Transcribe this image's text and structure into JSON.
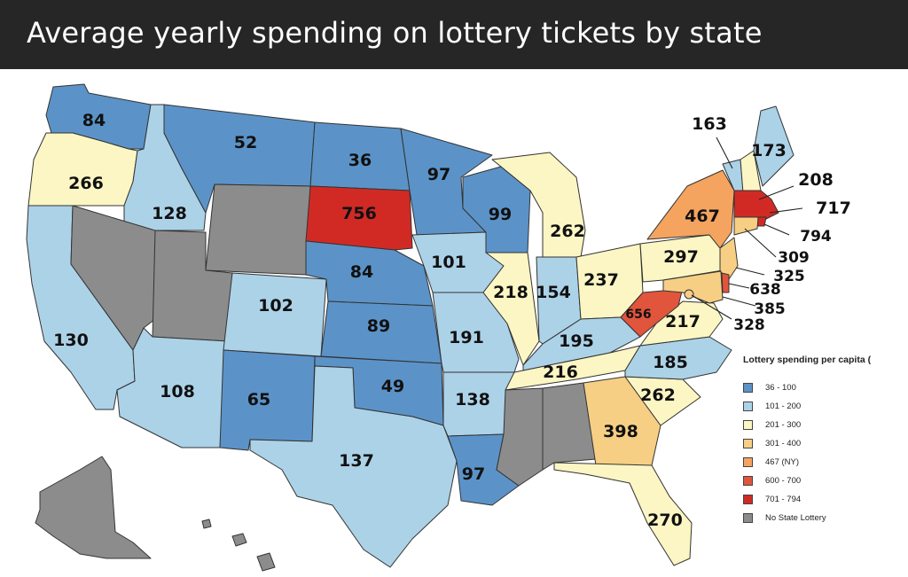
{
  "title": "Average yearly spending on lottery tickets by state",
  "legend": {
    "title": "Lottery spending per capita (",
    "items": [
      {
        "label": "36 - 100",
        "color": "#5b93c8"
      },
      {
        "label": "101 - 200",
        "color": "#acd2e8"
      },
      {
        "label": "201 - 300",
        "color": "#fbf6c3"
      },
      {
        "label": "301 - 400",
        "color": "#f6cf85"
      },
      {
        "label": "467 (NY)",
        "color": "#f4a45f"
      },
      {
        "label": "600 - 700",
        "color": "#e0553c"
      },
      {
        "label": "701 - 794",
        "color": "#d12a25"
      },
      {
        "label": "No State Lottery",
        "color": "#8c8c8c"
      }
    ]
  },
  "states": [
    {
      "name": "WA",
      "value": "84",
      "color": "#5b93c8"
    },
    {
      "name": "OR",
      "value": "266",
      "color": "#fbf6c3"
    },
    {
      "name": "CA",
      "value": "130",
      "color": "#acd2e8"
    },
    {
      "name": "ID",
      "value": "128",
      "color": "#acd2e8"
    },
    {
      "name": "NV",
      "value": "",
      "color": "#8c8c8c"
    },
    {
      "name": "MT",
      "value": "52",
      "color": "#5b93c8"
    },
    {
      "name": "WY",
      "value": "",
      "color": "#8c8c8c"
    },
    {
      "name": "UT",
      "value": "",
      "color": "#8c8c8c"
    },
    {
      "name": "AZ",
      "value": "108",
      "color": "#acd2e8"
    },
    {
      "name": "CO",
      "value": "102",
      "color": "#acd2e8"
    },
    {
      "name": "NM",
      "value": "65",
      "color": "#5b93c8"
    },
    {
      "name": "ND",
      "value": "36",
      "color": "#5b93c8"
    },
    {
      "name": "SD",
      "value": "756",
      "color": "#d12a25"
    },
    {
      "name": "NE",
      "value": "84",
      "color": "#5b93c8"
    },
    {
      "name": "KS",
      "value": "89",
      "color": "#5b93c8"
    },
    {
      "name": "OK",
      "value": "49",
      "color": "#5b93c8"
    },
    {
      "name": "TX",
      "value": "137",
      "color": "#acd2e8"
    },
    {
      "name": "MN",
      "value": "97",
      "color": "#5b93c8"
    },
    {
      "name": "IA",
      "value": "101",
      "color": "#acd2e8"
    },
    {
      "name": "MO",
      "value": "191",
      "color": "#acd2e8"
    },
    {
      "name": "AR",
      "value": "138",
      "color": "#acd2e8"
    },
    {
      "name": "LA",
      "value": "97",
      "color": "#5b93c8"
    },
    {
      "name": "WI",
      "value": "99",
      "color": "#5b93c8"
    },
    {
      "name": "IL",
      "value": "218",
      "color": "#fbf6c3"
    },
    {
      "name": "MI",
      "value": "262",
      "color": "#fbf6c3"
    },
    {
      "name": "IN",
      "value": "154",
      "color": "#acd2e8"
    },
    {
      "name": "OH",
      "value": "237",
      "color": "#fbf6c3"
    },
    {
      "name": "KY",
      "value": "195",
      "color": "#acd2e8"
    },
    {
      "name": "TN",
      "value": "216",
      "color": "#fbf6c3"
    },
    {
      "name": "MS",
      "value": "",
      "color": "#8c8c8c"
    },
    {
      "name": "AL",
      "value": "",
      "color": "#8c8c8c"
    },
    {
      "name": "GA",
      "value": "398",
      "color": "#f6cf85"
    },
    {
      "name": "FL",
      "value": "270",
      "color": "#fbf6c3"
    },
    {
      "name": "SC",
      "value": "262",
      "color": "#fbf6c3"
    },
    {
      "name": "NC",
      "value": "185",
      "color": "#acd2e8"
    },
    {
      "name": "VA",
      "value": "217",
      "color": "#fbf6c3"
    },
    {
      "name": "WV",
      "value": "656",
      "color": "#e0553c"
    },
    {
      "name": "PA",
      "value": "297",
      "color": "#fbf6c3"
    },
    {
      "name": "NY",
      "value": "467",
      "color": "#f4a45f"
    },
    {
      "name": "VT",
      "value": "163",
      "color": "#acd2e8"
    },
    {
      "name": "NH",
      "value": "208",
      "color": "#fbf6c3"
    },
    {
      "name": "ME",
      "value": "173",
      "color": "#acd2e8"
    },
    {
      "name": "MA",
      "value": "717",
      "color": "#d12a25"
    },
    {
      "name": "RI",
      "value": "794",
      "color": "#d12a25"
    },
    {
      "name": "CT",
      "value": "309",
      "color": "#f6cf85"
    },
    {
      "name": "NJ",
      "value": "325",
      "color": "#f6cf85"
    },
    {
      "name": "DE",
      "value": "638",
      "color": "#e0553c"
    },
    {
      "name": "MD",
      "value": "385",
      "color": "#f6cf85"
    },
    {
      "name": "DC",
      "value": "328",
      "color": "#f6cf85"
    },
    {
      "name": "AK",
      "value": "",
      "color": "#8c8c8c"
    },
    {
      "name": "HI",
      "value": "",
      "color": "#8c8c8c"
    }
  ]
}
